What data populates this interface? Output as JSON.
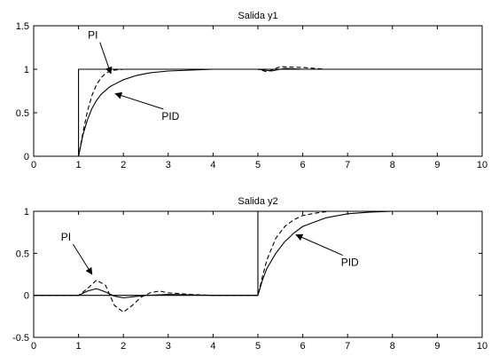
{
  "chart_data": [
    {
      "type": "line",
      "title": "Salida y1",
      "xlabel": "",
      "ylabel": "",
      "xlim": [
        0,
        10
      ],
      "ylim": [
        0,
        1.5
      ],
      "xticks": [
        "0",
        "1",
        "2",
        "3",
        "4",
        "5",
        "6",
        "7",
        "8",
        "9",
        "10"
      ],
      "yticks": [
        "0",
        "0.5",
        "1",
        "1.5"
      ],
      "grid": false,
      "series": [
        {
          "style": "solid",
          "x": [
            0,
            1,
            1,
            10
          ],
          "y": [
            0,
            0,
            1,
            1
          ]
        },
        {
          "style": "dashed",
          "x": [
            0,
            1,
            1.1,
            1.2,
            1.3,
            1.4,
            1.5,
            1.6,
            1.7,
            1.8,
            2,
            2.2,
            2.5,
            3,
            3.5,
            4,
            4.5,
            5,
            5.2,
            5.5,
            6,
            6.5,
            7,
            8,
            10
          ],
          "y": [
            0,
            0,
            0.28,
            0.52,
            0.7,
            0.82,
            0.9,
            0.95,
            0.98,
            0.99,
            1.0,
            1.0,
            1.0,
            1.0,
            1.0,
            1.0,
            1.0,
            1.0,
            0.97,
            1.03,
            1.02,
            1.0,
            1.0,
            1.0,
            1.0
          ]
        },
        {
          "style": "solid",
          "x": [
            0,
            1,
            1.1,
            1.2,
            1.3,
            1.4,
            1.5,
            1.7,
            2,
            2.3,
            2.6,
            3,
            3.5,
            4,
            5,
            5.3,
            5.6,
            6,
            7,
            10
          ],
          "y": [
            0,
            0,
            0.25,
            0.42,
            0.55,
            0.64,
            0.71,
            0.8,
            0.88,
            0.93,
            0.96,
            0.98,
            0.99,
            1.0,
            1.0,
            0.98,
            1.01,
            1.0,
            1.0,
            1.0
          ]
        }
      ],
      "annotations": [
        {
          "text": "PI",
          "x": 1.32,
          "y": 1.35,
          "arrow_to": [
            1.72,
            0.95
          ]
        },
        {
          "text": "PID",
          "x": 3.05,
          "y": 0.42,
          "arrow_to": [
            1.82,
            0.72
          ]
        }
      ]
    },
    {
      "type": "line",
      "title": "Salida y2",
      "xlabel": "",
      "ylabel": "",
      "xlim": [
        0,
        10
      ],
      "ylim": [
        -0.5,
        1
      ],
      "xticks": [
        "0",
        "1",
        "2",
        "3",
        "4",
        "5",
        "6",
        "7",
        "8",
        "9",
        "10"
      ],
      "yticks": [
        "-0.5",
        "0",
        "0.5",
        "1"
      ],
      "grid": false,
      "series": [
        {
          "style": "solid",
          "x": [
            0,
            5,
            5,
            10
          ],
          "y": [
            0,
            0,
            1,
            1
          ]
        },
        {
          "style": "dashed",
          "x": [
            0,
            1,
            1.2,
            1.4,
            1.6,
            1.8,
            2,
            2.2,
            2.4,
            2.6,
            2.8,
            3,
            3.5,
            4,
            5,
            5.1,
            5.2,
            5.4,
            5.6,
            5.8,
            6,
            6.3,
            6.6,
            7,
            8,
            10
          ],
          "y": [
            0,
            0,
            0.08,
            0.18,
            0.12,
            -0.12,
            -0.2,
            -0.12,
            -0.02,
            0.03,
            0.05,
            0.03,
            0.01,
            0,
            0,
            0.22,
            0.42,
            0.68,
            0.82,
            0.9,
            0.95,
            0.98,
            1.0,
            1.0,
            1.0,
            1.0
          ]
        },
        {
          "style": "solid",
          "x": [
            0,
            1,
            1.2,
            1.4,
            1.6,
            1.8,
            2,
            2.5,
            3,
            4,
            5,
            5.1,
            5.2,
            5.4,
            5.6,
            5.8,
            6,
            6.5,
            7,
            7.5,
            8,
            10
          ],
          "y": [
            0,
            0,
            0.05,
            0.08,
            0.04,
            -0.01,
            -0.03,
            0,
            0.01,
            0,
            0,
            0.18,
            0.32,
            0.5,
            0.64,
            0.74,
            0.82,
            0.92,
            0.97,
            0.99,
            1.0,
            1.0
          ]
        }
      ],
      "annotations": [
        {
          "text": "PI",
          "x": 0.72,
          "y": 0.65,
          "arrow_to": [
            1.3,
            0.25
          ]
        },
        {
          "text": "PID",
          "x": 7.05,
          "y": 0.35,
          "arrow_to": [
            5.85,
            0.72
          ]
        }
      ]
    }
  ]
}
